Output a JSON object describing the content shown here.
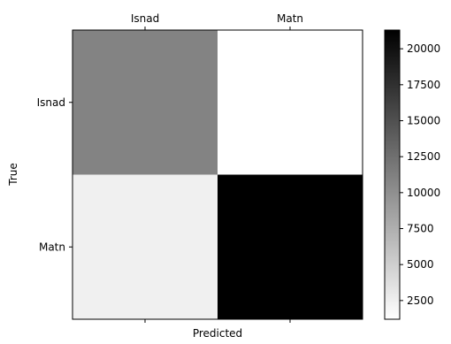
{
  "chart_data": {
    "type": "heatmap",
    "title": "",
    "xlabel": "Predicted",
    "ylabel": "True",
    "x_categories": [
      "Isnad",
      "Matn"
    ],
    "y_categories": [
      "Isnad",
      "Matn"
    ],
    "x_tick_position": "top",
    "values": [
      [
        11000,
        1200
      ],
      [
        2400,
        21300
      ]
    ],
    "colormap": "gray_r",
    "colorbar": {
      "vmin": 1200,
      "vmax": 21300,
      "ticks": [
        2500,
        5000,
        7500,
        10000,
        12500,
        15000,
        17500,
        20000
      ],
      "tick_labels": [
        "2500",
        "5000",
        "7500",
        "10000",
        "12500",
        "15000",
        "17500",
        "20000"
      ]
    },
    "grid": false
  }
}
